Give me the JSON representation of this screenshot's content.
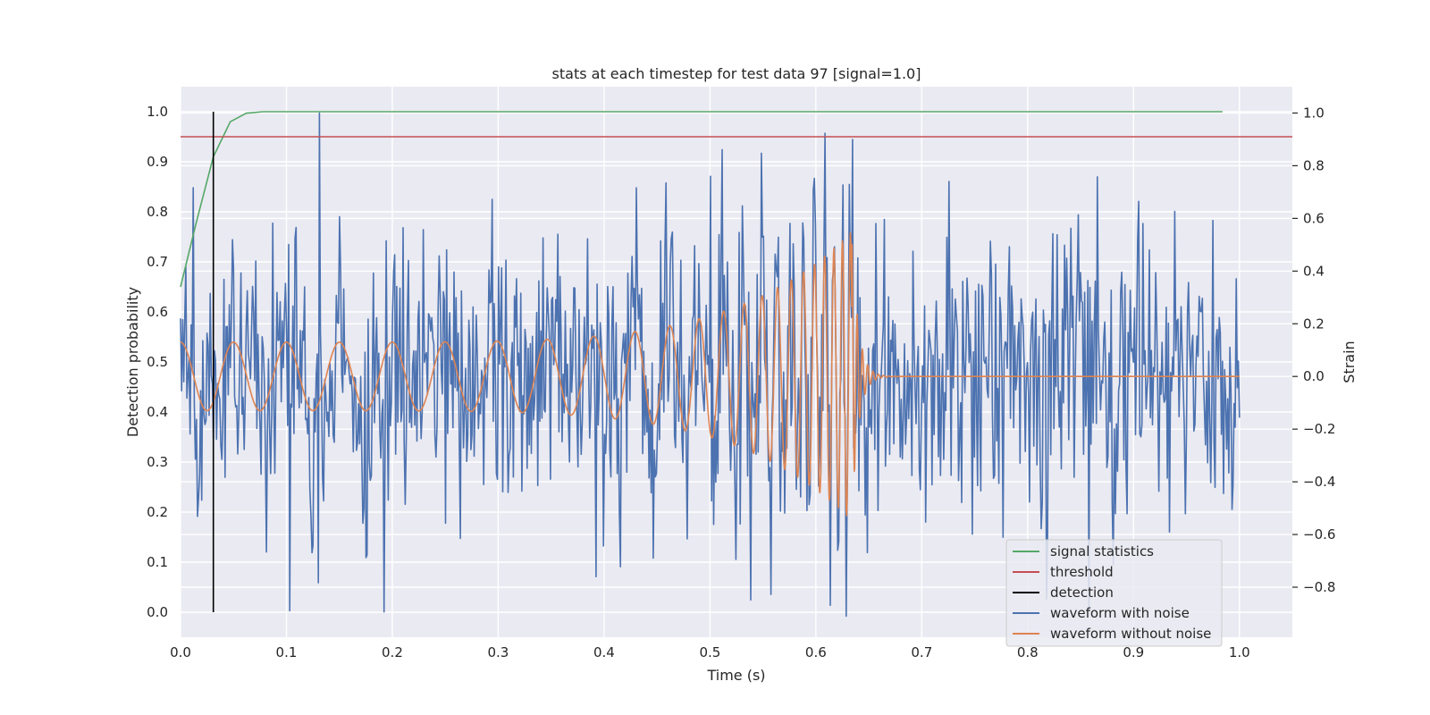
{
  "chart_data": {
    "type": "line",
    "title": "stats at each timestep for test data 97 [signal=1.0]",
    "xlabel": "Time (s)",
    "ylabel_left": "Detection probability",
    "ylabel_right": "Strain",
    "xlim": [
      0.0,
      1.05
    ],
    "ylim_left": [
      -0.05,
      1.05
    ],
    "ylim_right": [
      -0.99,
      1.1
    ],
    "x_ticks": [
      0.0,
      0.1,
      0.2,
      0.3,
      0.4,
      0.5,
      0.6,
      0.7,
      0.8,
      0.9,
      1.0
    ],
    "x_tick_labels": [
      "0.0",
      "0.1",
      "0.2",
      "0.3",
      "0.4",
      "0.5",
      "0.6",
      "0.7",
      "0.8",
      "0.9",
      "1.0"
    ],
    "y_left_ticks": [
      0.0,
      0.1,
      0.2,
      0.3,
      0.4,
      0.5,
      0.6,
      0.7,
      0.8,
      0.9,
      1.0
    ],
    "y_left_tick_labels": [
      "0.0",
      "0.1",
      "0.2",
      "0.3",
      "0.4",
      "0.5",
      "0.6",
      "0.7",
      "0.8",
      "0.9",
      "1.0"
    ],
    "y_right_ticks": [
      -0.8,
      -0.6,
      -0.4,
      -0.2,
      0.0,
      0.2,
      0.4,
      0.6,
      0.8,
      1.0
    ],
    "y_right_tick_labels": [
      "−0.8",
      "−0.6",
      "−0.4",
      "−0.2",
      "0.0",
      "0.2",
      "0.4",
      "0.6",
      "0.8",
      "1.0"
    ],
    "grid": true,
    "legend_position": "lower-right",
    "series": [
      {
        "name": "signal statistics",
        "color": "#55a868",
        "axis": "left",
        "x": [
          0.0,
          0.015,
          0.031,
          0.047,
          0.062,
          0.078,
          0.1,
          0.2,
          0.3,
          0.4,
          0.5,
          0.6,
          0.7,
          0.8,
          0.9,
          0.984
        ],
        "y": [
          0.65,
          0.78,
          0.91,
          0.98,
          0.997,
          1.0,
          1.0,
          1.0,
          1.0,
          1.0,
          1.0,
          1.0,
          1.0,
          1.0,
          1.0,
          1.0
        ]
      },
      {
        "name": "threshold",
        "color": "#c44e52",
        "axis": "left",
        "x": [
          0.0,
          1.05
        ],
        "y": [
          0.95,
          0.95
        ]
      },
      {
        "name": "detection",
        "color": "#000000",
        "axis": "left",
        "x": [
          0.031,
          0.031
        ],
        "y": [
          0.0,
          1.0
        ]
      },
      {
        "name": "waveform with noise",
        "color": "#4c72b0",
        "axis": "right",
        "x_range": [
          0.0,
          1.0
        ],
        "n_points": 1000,
        "std": 0.27,
        "notable_points": [
          {
            "x": 0.131,
            "y": 1.0
          },
          {
            "x": 0.629,
            "y": -0.91
          },
          {
            "x": 0.103,
            "y": -0.89
          },
          {
            "x": 0.392,
            "y": -0.76
          },
          {
            "x": 0.5,
            "y": 0.76
          }
        ]
      },
      {
        "name": "waveform without noise",
        "color": "#dd8452",
        "axis": "right",
        "description": "chirp",
        "x_range": [
          0.0,
          1.0
        ],
        "merger_time": 0.634,
        "start_amplitude": 0.13,
        "peak_amplitude": 0.55,
        "start_frequency_hz": 20,
        "peak_frequency_hz": 140
      }
    ]
  },
  "legend": {
    "items": [
      {
        "label": "signal statistics",
        "color": "#55a868"
      },
      {
        "label": "threshold",
        "color": "#c44e52"
      },
      {
        "label": "detection",
        "color": "#000000"
      },
      {
        "label": "waveform with noise",
        "color": "#4c72b0"
      },
      {
        "label": "waveform without noise",
        "color": "#dd8452"
      }
    ]
  }
}
